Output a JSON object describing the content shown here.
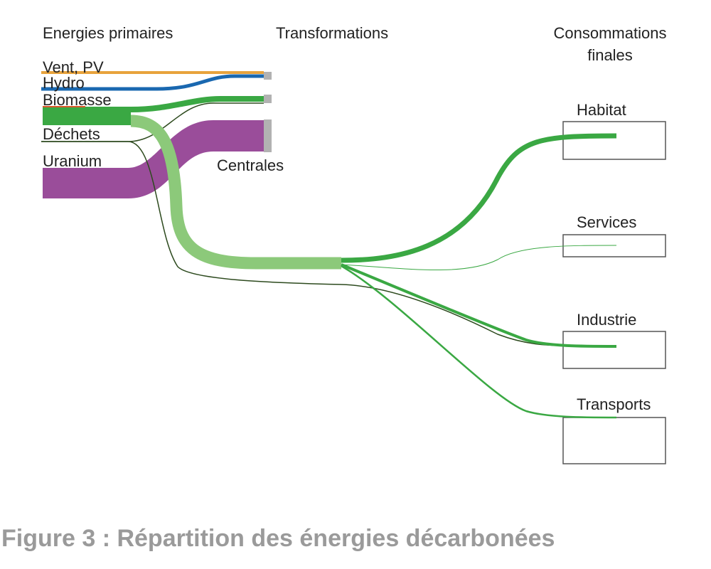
{
  "headers": {
    "primary": "Energies primaires",
    "transformations": "Transformations",
    "final_line1": "Consommations",
    "final_line2": "finales"
  },
  "sources": {
    "wind_pv": "Vent, PV",
    "hydro": "Hydro",
    "biomass": "Biomasse",
    "waste": "Déchets",
    "uranium": "Uranium"
  },
  "transformation_node": "Centrales",
  "sectors": {
    "habitat": "Habitat",
    "services": "Services",
    "industrie": "Industrie",
    "transports": "Transports"
  },
  "caption": "Figure 3 : Répartition des énergies décarbonées",
  "colors": {
    "wind_pv": "#e8a33c",
    "hydro": "#1a68b0",
    "biomass": "#3aa843",
    "biomass_light": "#8cc97a",
    "waste": "#2d4a1e",
    "uranium": "#9a4d9a",
    "plant": "#b2b2b2",
    "box": "#555555"
  }
}
